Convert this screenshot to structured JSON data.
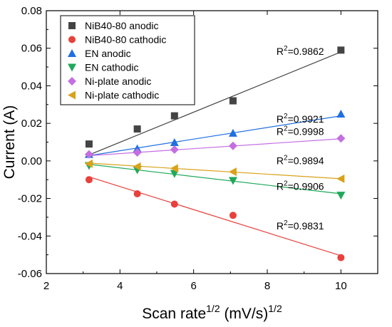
{
  "chart_data": {
    "type": "scatter",
    "xlabel": {
      "base": "Scan rate",
      "sup1": "1/2",
      "mid": " (mV/s)",
      "sup2": "1/2"
    },
    "ylabel": "Current (A)",
    "xlim": [
      2,
      11
    ],
    "ylim": [
      -0.06,
      0.08
    ],
    "xticks": [
      2,
      4,
      6,
      8,
      10
    ],
    "yticks": [
      -0.06,
      -0.04,
      -0.02,
      0.0,
      0.02,
      0.04,
      0.06,
      0.08
    ],
    "ytick_labels": [
      "-0.06",
      "-0.04",
      "-0.02",
      "0.00",
      "0.02",
      "0.04",
      "0.06",
      "0.08"
    ],
    "legend_position": "top-left",
    "grid": false,
    "x": [
      3.16,
      4.47,
      5.48,
      7.07,
      10.0
    ],
    "series": [
      {
        "name": "NiB40-80 anodic",
        "marker": "square",
        "color": "#444444",
        "values": [
          0.009,
          0.017,
          0.024,
          0.032,
          0.059
        ],
        "r2": "0.9862",
        "fit_end": [
          3.16,
          0.0032,
          10.0,
          0.058
        ]
      },
      {
        "name": "NiB40-80 cathodic",
        "marker": "circle",
        "color": "#e8413c",
        "values": [
          -0.01,
          -0.0175,
          -0.023,
          -0.029,
          -0.0515
        ],
        "r2": "0.9831",
        "fit_end": [
          3.16,
          -0.0085,
          10.0,
          -0.0505
        ]
      },
      {
        "name": "EN anodic",
        "marker": "triangle-up",
        "color": "#1f6fe0",
        "values": [
          0.0035,
          0.0065,
          0.0098,
          0.0148,
          0.025
        ],
        "r2": "0.9921",
        "fit_end": [
          3.16,
          0.0028,
          10.0,
          0.024
        ]
      },
      {
        "name": "EN cathodic",
        "marker": "triangle-down",
        "color": "#1fa85a",
        "values": [
          -0.0025,
          -0.0048,
          -0.0068,
          -0.0105,
          -0.0183
        ],
        "r2": "0.9906",
        "fit_end": [
          3.16,
          -0.0018,
          10.0,
          -0.0175
        ]
      },
      {
        "name": "Ni-plate anodic",
        "marker": "diamond",
        "color": "#c46fe0",
        "values": [
          0.0035,
          0.0045,
          0.006,
          0.008,
          0.012
        ],
        "r2": "0.9998",
        "fit_end": [
          3.16,
          0.0028,
          10.0,
          0.0118
        ]
      },
      {
        "name": "Ni-plate cathodic",
        "marker": "triangle-left",
        "color": "#d9a21a",
        "values": [
          -0.0015,
          -0.003,
          -0.004,
          -0.0058,
          -0.0095
        ],
        "r2": "0.9894",
        "fit_end": [
          3.16,
          -0.0012,
          10.0,
          -0.0095
        ]
      }
    ],
    "r2_prefix": "R",
    "r2_sup": "2",
    "r2_labels": [
      {
        "series": 0,
        "at": [
          8.25,
          0.0565
        ]
      },
      {
        "series": 2,
        "at": [
          8.25,
          0.0205
        ]
      },
      {
        "series": 4,
        "at": [
          8.25,
          0.0137
        ]
      },
      {
        "series": 5,
        "at": [
          8.25,
          -0.0017
        ]
      },
      {
        "series": 3,
        "at": [
          8.25,
          -0.0155
        ]
      },
      {
        "series": 1,
        "at": [
          8.25,
          -0.0365
        ]
      }
    ]
  }
}
